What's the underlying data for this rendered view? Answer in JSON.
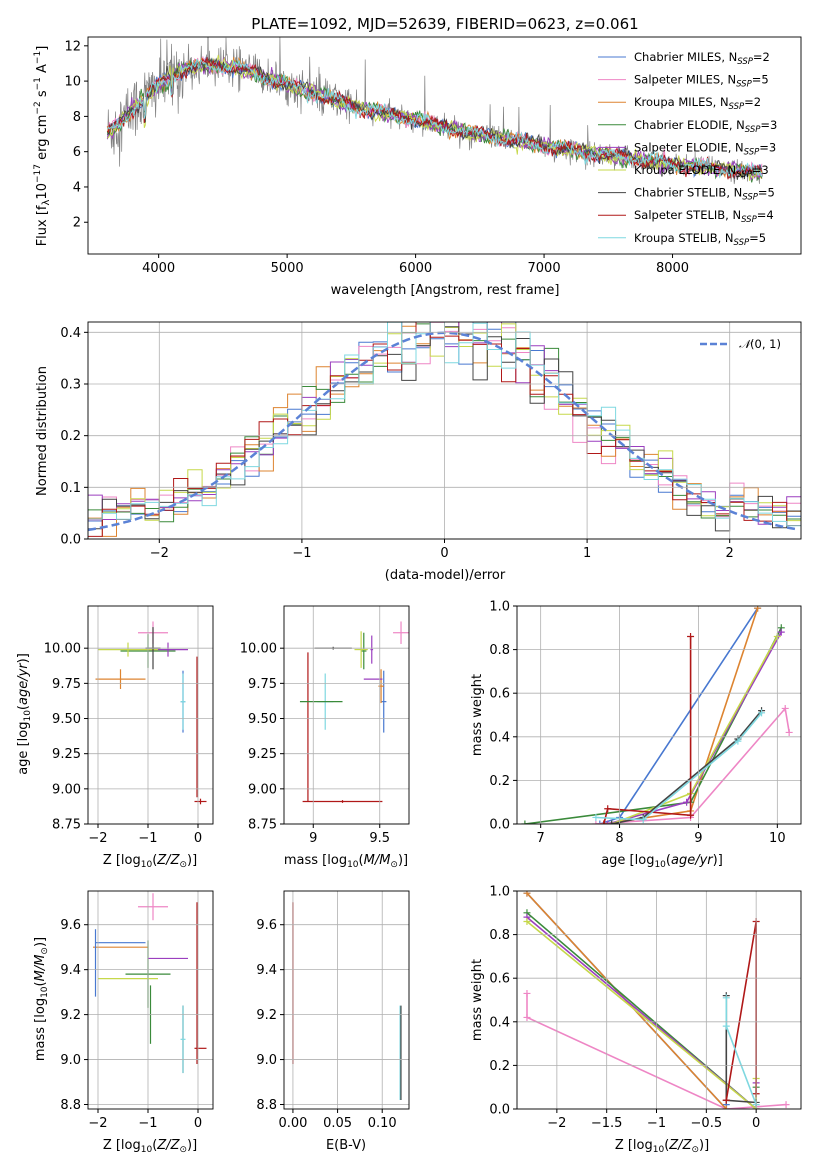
{
  "figure": {
    "title": "PLATE=1092, MJD=52639, FIBERID=0623, z=0.061"
  },
  "series_colors": [
    "#4878d0",
    "#ee86c5",
    "#dd8430",
    "#3a8a3a",
    "#9b3fbf",
    "#c6d84a",
    "#444444",
    "#b01818",
    "#7fd8e0"
  ],
  "chart_data": [
    {
      "id": "spectrum",
      "type": "line",
      "xlabel": "wavelength [Angstrom, rest frame]",
      "ylabel": "Flux [f_λ 10^-17 erg cm^-2 s^-1 A^-1]",
      "xlim": [
        3450,
        9000
      ],
      "ylim": [
        0.2,
        12.5
      ],
      "xticks": [
        4000,
        5000,
        6000,
        7000,
        8000
      ],
      "yticks": [
        2,
        4,
        6,
        8,
        10,
        12
      ],
      "grid": false,
      "legend_position": "top-right",
      "data_color": "#808080",
      "data_profile": {
        "x": [
          3600,
          3800,
          4000,
          4200,
          4400,
          4600,
          4800,
          5000,
          5300,
          5600,
          6000,
          6400,
          6800,
          7200,
          7600,
          8000,
          8400,
          8700
        ],
        "y": [
          7.0,
          8.4,
          9.8,
          10.7,
          10.9,
          10.8,
          10.3,
          9.8,
          9.1,
          8.4,
          7.8,
          7.1,
          6.6,
          6.1,
          5.7,
          5.3,
          5.0,
          4.8
        ]
      },
      "series": [
        {
          "name": "Chabrier MILES",
          "nssp": "2"
        },
        {
          "name": "Salpeter MILES",
          "nssp": "5"
        },
        {
          "name": "Kroupa MILES",
          "nssp": "2"
        },
        {
          "name": "Chabrier ELODIE",
          "nssp": "3"
        },
        {
          "name": "Salpeter ELODIE",
          "nssp": "3"
        },
        {
          "name": "Kroupa ELODIE",
          "nssp": "3"
        },
        {
          "name": "Chabrier STELIB",
          "nssp": "5"
        },
        {
          "name": "Salpeter STELIB",
          "nssp": "4"
        },
        {
          "name": "Kroupa STELIB",
          "nssp": "5"
        }
      ]
    },
    {
      "id": "residuals",
      "type": "line",
      "xlabel": "(data-model)/error",
      "ylabel": "Normed distribution",
      "xlim": [
        -2.5,
        2.5
      ],
      "ylim": [
        0,
        0.42
      ],
      "xticks": [
        -2,
        -1,
        0,
        1,
        2
      ],
      "yticks": [
        0.0,
        0.1,
        0.2,
        0.3,
        0.4
      ],
      "grid": true,
      "legend_position": "top-right",
      "reference_curve": {
        "name": "N(0,1)",
        "mean": 0,
        "sigma": 1,
        "color": "#5b82d6"
      },
      "histogram_bin_width": 0.1
    },
    {
      "id": "age_vs_z",
      "type": "scatter",
      "xlabel": "Z [log10(Z/Z⊙)]",
      "ylabel": "age  [log10(age/yr)]",
      "xlim": [
        -2.2,
        0.3
      ],
      "ylim": [
        8.75,
        10.3
      ],
      "xticks": [
        -2,
        -1,
        0
      ],
      "yticks": [
        8.75,
        9.0,
        9.25,
        9.5,
        9.75,
        10.0
      ],
      "grid": true,
      "points": [
        {
          "s": 0,
          "x": -0.3,
          "y": 9.62,
          "xe": 0.05,
          "ye": 0.22
        },
        {
          "s": 1,
          "x": -0.9,
          "y": 10.11,
          "xe": 0.3,
          "ye": 0.08
        },
        {
          "s": 2,
          "x": -1.55,
          "y": 9.78,
          "xe": 0.5,
          "ye": 0.07
        },
        {
          "s": 3,
          "x": -1.0,
          "y": 9.98,
          "xe": 0.55,
          "ye": 0.12
        },
        {
          "s": 4,
          "x": -0.6,
          "y": 9.99,
          "xe": 0.4,
          "ye": 0.05
        },
        {
          "s": 5,
          "x": -1.4,
          "y": 9.99,
          "xe": 0.6,
          "ye": 0.05
        },
        {
          "s": 6,
          "x": -0.9,
          "y": 10.0,
          "xe": 0.15,
          "ye": 0.15
        },
        {
          "s": 7,
          "x": 0.05,
          "y": 8.91,
          "xe": 0.12,
          "ye": 0.02
        },
        {
          "s": 8,
          "x": -0.3,
          "y": 9.62,
          "xe": 0.05,
          "ye": 0.2
        },
        {
          "s": 7,
          "x": -0.02,
          "y": 9.44,
          "xe": 0.0,
          "ye": 0.5
        }
      ]
    },
    {
      "id": "age_vs_mass",
      "type": "scatter",
      "xlabel": "mass [log10(M/M⊙)]",
      "ylabel": "",
      "xlim": [
        8.78,
        9.72
      ],
      "ylim": [
        8.75,
        10.3
      ],
      "xticks": [
        9.0,
        9.5
      ],
      "yticks": [
        8.75,
        9.0,
        9.25,
        9.5,
        9.75,
        10.0
      ],
      "grid": true,
      "points": [
        {
          "s": 0,
          "x": 9.53,
          "y": 9.62,
          "xe": 0.02,
          "ye": 0.22
        },
        {
          "s": 1,
          "x": 9.66,
          "y": 10.11,
          "xe": 0.06,
          "ye": 0.08
        },
        {
          "s": 2,
          "x": 9.51,
          "y": 9.73,
          "xe": 0.02,
          "ye": 0.12
        },
        {
          "s": 3,
          "x": 9.38,
          "y": 9.98,
          "xe": 0.02,
          "ye": 0.13
        },
        {
          "s": 4,
          "x": 9.44,
          "y": 9.99,
          "xe": 0.01,
          "ye": 0.1
        },
        {
          "s": 5,
          "x": 9.36,
          "y": 9.99,
          "xe": 0.05,
          "ye": 0.13
        },
        {
          "s": 6,
          "x": 9.15,
          "y": 10.0,
          "xe": 0.14,
          "ye": 0.01
        },
        {
          "s": 7,
          "x": 9.22,
          "y": 8.91,
          "xe": 0.3,
          "ye": 0.01
        },
        {
          "s": 8,
          "x": 9.09,
          "y": 9.62,
          "xe": 0.06,
          "ye": 0.2
        },
        {
          "s": 7,
          "x": 8.96,
          "y": 9.44,
          "xe": 0.0,
          "ye": 0.53
        },
        {
          "s": 3,
          "x": 9.06,
          "y": 9.62,
          "xe": 0.16,
          "ye": 0.0
        },
        {
          "s": 4,
          "x": 9.45,
          "y": 9.78,
          "xe": 0.07,
          "ye": 0.0
        }
      ]
    },
    {
      "id": "massweight_vs_age",
      "type": "line",
      "xlabel": "age  [log10(age/yr)]",
      "ylabel": "mass weight",
      "xlim": [
        6.7,
        10.3
      ],
      "ylim": [
        0,
        1.0
      ],
      "xticks": [
        7,
        8,
        9,
        10
      ],
      "yticks": [
        0.0,
        0.2,
        0.4,
        0.6,
        0.8,
        1.0
      ],
      "grid": true,
      "series_points": [
        {
          "s": 0,
          "x": [
            7.75,
            8.0,
            9.75
          ],
          "y": [
            0.0,
            0.03,
            0.99
          ]
        },
        {
          "s": 1,
          "x": [
            7.7,
            8.9,
            10.1,
            10.15
          ],
          "y": [
            0.0,
            0.03,
            0.53,
            0.42
          ]
        },
        {
          "s": 2,
          "x": [
            7.8,
            8.9,
            9.75
          ],
          "y": [
            0.0,
            0.06,
            0.99
          ]
        },
        {
          "s": 3,
          "x": [
            6.8,
            8.9,
            10.05
          ],
          "y": [
            0.0,
            0.1,
            0.9
          ]
        },
        {
          "s": 4,
          "x": [
            7.85,
            8.85,
            10.05
          ],
          "y": [
            0.0,
            0.1,
            0.88
          ]
        },
        {
          "s": 5,
          "x": [
            7.9,
            8.9,
            10.0
          ],
          "y": [
            0.0,
            0.14,
            0.86
          ]
        },
        {
          "s": 6,
          "x": [
            7.9,
            8.3,
            9.5,
            9.8
          ],
          "y": [
            0.0,
            0.03,
            0.39,
            0.52
          ]
        },
        {
          "s": 7,
          "x": [
            7.8,
            7.85,
            8.9,
            8.9
          ],
          "y": [
            0.0,
            0.07,
            0.04,
            0.86
          ]
        },
        {
          "s": 8,
          "x": [
            7.7,
            8.3,
            9.5,
            9.8
          ],
          "y": [
            0.03,
            0.02,
            0.38,
            0.51
          ]
        }
      ]
    },
    {
      "id": "mass_vs_z",
      "type": "scatter",
      "xlabel": "Z [log10(Z/Z⊙)]",
      "ylabel": "mass [log10(M/M⊙)]",
      "xlim": [
        -2.2,
        0.3
      ],
      "ylim": [
        8.78,
        9.75
      ],
      "xticks": [
        -2,
        -1,
        0
      ],
      "yticks": [
        8.8,
        9.0,
        9.2,
        9.4,
        9.6
      ],
      "grid": true,
      "points": [
        {
          "s": 0,
          "x": -1.55,
          "y": 9.52,
          "xe": 0.5,
          "ye": 0.0
        },
        {
          "s": 1,
          "x": -0.9,
          "y": 9.68,
          "xe": 0.3,
          "ye": 0.06
        },
        {
          "s": 2,
          "x": -1.55,
          "y": 9.5,
          "xe": 0.55,
          "ye": 0.0
        },
        {
          "s": 3,
          "x": -1.0,
          "y": 9.38,
          "xe": 0.45,
          "ye": 0.15
        },
        {
          "s": 4,
          "x": -0.6,
          "y": 9.45,
          "xe": 0.4,
          "ye": 0.0
        },
        {
          "s": 5,
          "x": -1.4,
          "y": 9.36,
          "xe": 0.6,
          "ye": 0.0
        },
        {
          "s": 6,
          "x": -0.3,
          "y": 9.09,
          "xe": 0.0,
          "ye": 0.15
        },
        {
          "s": 7,
          "x": 0.05,
          "y": 9.05,
          "xe": 0.12,
          "ye": 0.0
        },
        {
          "s": 8,
          "x": -0.3,
          "y": 9.09,
          "xe": 0.05,
          "ye": 0.15
        },
        {
          "s": 7,
          "x": -0.02,
          "y": 9.34,
          "xe": 0.0,
          "ye": 0.36
        },
        {
          "s": 0,
          "x": -2.05,
          "y": 9.43,
          "xe": 0.0,
          "ye": 0.15
        },
        {
          "s": 3,
          "x": -0.95,
          "y": 9.2,
          "xe": 0.0,
          "ye": 0.13
        }
      ]
    },
    {
      "id": "mass_vs_ebv",
      "type": "scatter",
      "xlabel": "E(B-V)",
      "ylabel": "",
      "xlim": [
        -0.01,
        0.13
      ],
      "ylim": [
        8.78,
        9.75
      ],
      "xticks": [
        0.0,
        0.05,
        0.1
      ],
      "xtick_labels": [
        "0.00",
        "0.05",
        "0.10"
      ],
      "yticks": [
        8.8,
        9.0,
        9.2,
        9.4,
        9.6
      ],
      "grid": true,
      "points": [
        {
          "s": 7,
          "x": 0.0,
          "y": 9.34,
          "xe": 0.0,
          "ye": 0.36
        },
        {
          "s": 8,
          "x": 0.12,
          "y": 9.03,
          "xe": 0.0,
          "ye": 0.21
        },
        {
          "s": 6,
          "x": 0.121,
          "y": 9.03,
          "xe": 0.0,
          "ye": 0.21
        }
      ]
    },
    {
      "id": "massweight_vs_z",
      "type": "line",
      "xlabel": "Z [log10(Z/Z⊙)]",
      "ylabel": "mass weight",
      "xlim": [
        -2.4,
        0.45
      ],
      "ylim": [
        0,
        1.0
      ],
      "xticks": [
        -2.0,
        -1.5,
        -1.0,
        -0.5,
        0.0
      ],
      "yticks": [
        0.0,
        0.2,
        0.4,
        0.6,
        0.8,
        1.0
      ],
      "grid": true,
      "series_points": [
        {
          "s": 0,
          "x": [
            -2.3,
            -0.3,
            -0.3
          ],
          "y": [
            0.99,
            0.0,
            0.02
          ]
        },
        {
          "s": 1,
          "x": [
            -2.3,
            -2.3,
            -0.3,
            0.3
          ],
          "y": [
            0.53,
            0.42,
            0.0,
            0.02
          ]
        },
        {
          "s": 2,
          "x": [
            -2.3,
            -0.3
          ],
          "y": [
            0.99,
            0.0
          ]
        },
        {
          "s": 3,
          "x": [
            -2.3,
            0.0,
            0.0
          ],
          "y": [
            0.9,
            0.0,
            0.1
          ]
        },
        {
          "s": 4,
          "x": [
            -2.3,
            0.0,
            0.0
          ],
          "y": [
            0.88,
            0.0,
            0.12
          ]
        },
        {
          "s": 5,
          "x": [
            -2.3,
            0.0,
            0.0
          ],
          "y": [
            0.86,
            0.0,
            0.14
          ]
        },
        {
          "s": 6,
          "x": [
            -0.3,
            -0.3,
            0.0
          ],
          "y": [
            0.52,
            0.04,
            0.03
          ]
        },
        {
          "s": 7,
          "x": [
            -0.3,
            0.0,
            0.0
          ],
          "y": [
            0.04,
            0.86,
            0.07
          ]
        },
        {
          "s": 8,
          "x": [
            -0.3,
            -0.3,
            0.0
          ],
          "y": [
            0.51,
            0.38,
            0.02
          ]
        }
      ]
    }
  ]
}
